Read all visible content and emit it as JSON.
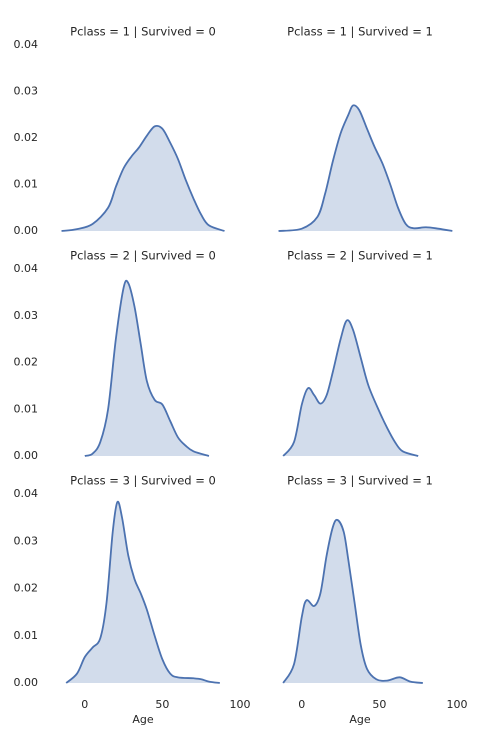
{
  "chart_data": [
    {
      "type": "area",
      "title": "Pclass = 1 | Survived = 0",
      "color": "#4c72b0",
      "x": [
        -15,
        -5,
        5,
        15,
        20,
        25,
        30,
        35,
        40,
        45,
        50,
        55,
        60,
        65,
        70,
        75,
        80,
        90
      ],
      "values": [
        0,
        0.0004,
        0.0015,
        0.005,
        0.0095,
        0.0135,
        0.016,
        0.018,
        0.0205,
        0.0225,
        0.022,
        0.019,
        0.0155,
        0.011,
        0.007,
        0.0035,
        0.0012,
        0
      ],
      "xlim": [
        -25,
        100
      ],
      "ylim": [
        0,
        0.04
      ],
      "yticks": [
        {
          "value": 0,
          "label": "0.00"
        },
        {
          "value": 0.01,
          "label": "0.01"
        },
        {
          "value": 0.02,
          "label": "0.02"
        },
        {
          "value": 0.03,
          "label": "0.03"
        },
        {
          "value": 0.04,
          "label": "0.04"
        }
      ]
    },
    {
      "type": "area",
      "title": "Pclass = 1 | Survived = 1",
      "color": "#4c72b0",
      "x": [
        -15,
        0,
        10,
        15,
        20,
        25,
        30,
        33,
        37,
        42,
        47,
        52,
        57,
        62,
        67,
        72,
        80,
        88,
        97
      ],
      "values": [
        0,
        0.0005,
        0.003,
        0.008,
        0.015,
        0.021,
        0.025,
        0.027,
        0.026,
        0.022,
        0.018,
        0.0145,
        0.01,
        0.005,
        0.0015,
        0.0006,
        0.0008,
        0.0005,
        0
      ],
      "xlim": [
        -25,
        100
      ],
      "ylim": [
        0,
        0.04
      ]
    },
    {
      "type": "area",
      "title": "Pclass = 2 | Survived = 0",
      "color": "#4c72b0",
      "x": [
        0,
        5,
        10,
        15,
        20,
        25,
        28,
        32,
        36,
        40,
        45,
        50,
        55,
        60,
        65,
        70,
        80
      ],
      "values": [
        0,
        0.0005,
        0.003,
        0.01,
        0.025,
        0.036,
        0.037,
        0.032,
        0.024,
        0.016,
        0.012,
        0.011,
        0.0075,
        0.004,
        0.0022,
        0.001,
        0
      ],
      "xlim": [
        -25,
        100
      ],
      "ylim": [
        0,
        0.04
      ],
      "yticks": [
        {
          "value": 0,
          "label": "0.00"
        },
        {
          "value": 0.01,
          "label": "0.01"
        },
        {
          "value": 0.02,
          "label": "0.02"
        },
        {
          "value": 0.03,
          "label": "0.03"
        },
        {
          "value": 0.04,
          "label": "0.04"
        }
      ]
    },
    {
      "type": "area",
      "title": "Pclass = 2 | Survived = 1",
      "color": "#4c72b0",
      "x": [
        -12,
        -5,
        0,
        4,
        8,
        12,
        16,
        20,
        25,
        29,
        33,
        38,
        43,
        50,
        55,
        60,
        65,
        75
      ],
      "values": [
        0,
        0.003,
        0.011,
        0.0145,
        0.013,
        0.0112,
        0.013,
        0.018,
        0.025,
        0.029,
        0.027,
        0.021,
        0.015,
        0.0095,
        0.006,
        0.003,
        0.001,
        0
      ],
      "xlim": [
        -25,
        100
      ],
      "ylim": [
        0,
        0.04
      ]
    },
    {
      "type": "area",
      "title": "Pclass = 3 | Survived = 0",
      "color": "#4c72b0",
      "x": [
        -12,
        -5,
        0,
        5,
        10,
        14,
        18,
        21,
        24,
        28,
        32,
        36,
        40,
        45,
        50,
        55,
        60,
        70,
        75,
        80,
        87
      ],
      "values": [
        0,
        0.002,
        0.0055,
        0.0075,
        0.0095,
        0.017,
        0.032,
        0.0383,
        0.035,
        0.027,
        0.022,
        0.019,
        0.0155,
        0.01,
        0.005,
        0.002,
        0.0012,
        0.001,
        0.0008,
        0.0003,
        0
      ],
      "xlim": [
        -25,
        100
      ],
      "ylim": [
        0,
        0.04
      ],
      "yticks": [
        {
          "value": 0,
          "label": "0.00"
        },
        {
          "value": 0.01,
          "label": "0.01"
        },
        {
          "value": 0.02,
          "label": "0.02"
        },
        {
          "value": 0.03,
          "label": "0.03"
        },
        {
          "value": 0.04,
          "label": "0.04"
        }
      ],
      "xticks": [
        0,
        50,
        100
      ],
      "xlabel": "Age"
    },
    {
      "type": "area",
      "title": "Pclass = 3 | Survived = 1",
      "color": "#4c72b0",
      "x": [
        -12,
        -5,
        0,
        3,
        8,
        12,
        16,
        20,
        23,
        27,
        30,
        34,
        38,
        42,
        48,
        55,
        63,
        70,
        78
      ],
      "values": [
        0,
        0.004,
        0.014,
        0.0175,
        0.0163,
        0.019,
        0.027,
        0.033,
        0.0345,
        0.032,
        0.026,
        0.017,
        0.008,
        0.003,
        0.0008,
        0.0005,
        0.0012,
        0.0003,
        0
      ],
      "xlim": [
        -25,
        100
      ],
      "ylim": [
        0,
        0.04
      ],
      "xticks": [
        0,
        50,
        100
      ],
      "xlabel": "Age"
    }
  ]
}
